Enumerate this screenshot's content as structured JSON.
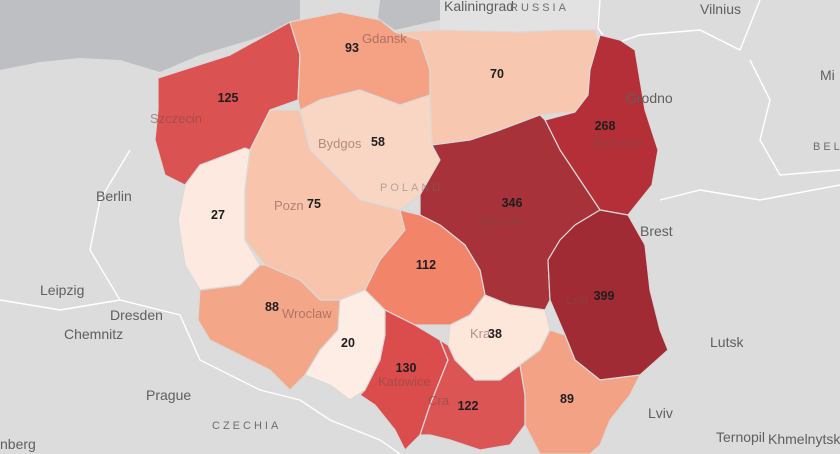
{
  "map": {
    "country_label": "POLAND",
    "neighbor_labels": {
      "kaliningrad": "Kaliningrad",
      "russia": "RUSSIA",
      "vilnius": "Vilnius",
      "grodno": "Grodno",
      "belarus": "BEL",
      "brest": "Brest",
      "lutsk": "Lutsk",
      "lviv": "Lviv",
      "ternopil": "Ternopil",
      "khmelnytskyi": "Khmelnytskyi",
      "berlin": "Berlin",
      "leipzig": "Leipzig",
      "dresden": "Dresden",
      "chemnitz": "Chemnitz",
      "prague": "Prague",
      "czechia": "CZECHIA",
      "nuremberg": "nberg",
      "mi": "Mi"
    },
    "city_labels": {
      "gdansk": "Gdansk",
      "szczecin": "Szczecin",
      "bydgoszcz": "Bydgos",
      "bialystok": "Bialystok",
      "warsaw": "Warsaw",
      "poznan": "Pozn",
      "lublin": "Lub",
      "wroclaw": "Wroclaw",
      "krakow": "Kra",
      "katowice": "Katowice",
      "krakow2": "Cra"
    }
  },
  "regions": [
    {
      "id": "zachodniopomorskie",
      "value": 125,
      "color": "#db5252"
    },
    {
      "id": "pomorskie",
      "value": 93,
      "color": "#f4a184"
    },
    {
      "id": "warminsko-mazurskie",
      "value": 70,
      "color": "#f8c7b0"
    },
    {
      "id": "kujawsko-pomorskie",
      "value": 58,
      "color": "#f9d6c3"
    },
    {
      "id": "podlaskie",
      "value": 268,
      "color": "#b42f38"
    },
    {
      "id": "lubuskie",
      "value": 27,
      "color": "#fde9df"
    },
    {
      "id": "wielkopolskie",
      "value": 75,
      "color": "#f8c4ac"
    },
    {
      "id": "mazowieckie",
      "value": 346,
      "color": "#a8323a"
    },
    {
      "id": "lodzkie",
      "value": 112,
      "color": "#f2846a"
    },
    {
      "id": "lubelskie",
      "value": 399,
      "color": "#a12b34"
    },
    {
      "id": "dolnoslaskie",
      "value": 88,
      "color": "#f4a688"
    },
    {
      "id": "opolskie",
      "value": 20,
      "color": "#feede5"
    },
    {
      "id": "slaskie",
      "value": 130,
      "color": "#db4d4d"
    },
    {
      "id": "swietokrzyskie",
      "value": 38,
      "color": "#fde6da"
    },
    {
      "id": "malopolskie",
      "value": 122,
      "color": "#dc5555"
    },
    {
      "id": "podkarpackie",
      "value": 89,
      "color": "#f4a285"
    }
  ]
}
